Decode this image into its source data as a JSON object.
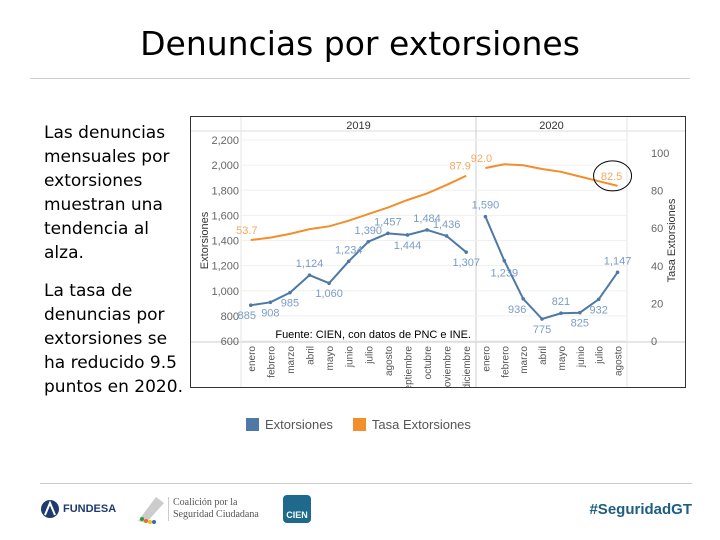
{
  "title": "Denuncias por extorsiones",
  "side_text": [
    "Las denuncias mensuales por extorsiones muestran una tendencia al alza.",
    "La tasa de denuncias por extorsiones se ha reducido 9.5 puntos en 2020."
  ],
  "source_note": "Fuente: CIEN, con datos de PNC e INE.",
  "footer": {
    "logo1": "FUNDESA",
    "logo2_line1": "Coalición por la",
    "logo2_line2": "Seguridad Ciudadana",
    "logo3": "CIEN",
    "hashtag": "#SeguridadGT"
  },
  "colors": {
    "extorsiones": "#4e79a7",
    "tasa": "#f28e2b",
    "label_ext": "#7b9cc4",
    "label_tasa": "#f5a860"
  },
  "chart_data": {
    "type": "line",
    "panels": [
      {
        "year": "2019",
        "months": [
          "enero",
          "febrero",
          "marzo",
          "abril",
          "mayo",
          "junio",
          "julio",
          "agosto",
          "septiembre",
          "octubre",
          "noviembre",
          "diciembre"
        ],
        "extorsiones": [
          885,
          908,
          985,
          1124,
          1060,
          1234,
          1390,
          1457,
          1444,
          1484,
          1436,
          1307
        ],
        "tasa": [
          53.7,
          55,
          57,
          59.5,
          61,
          64,
          67.5,
          71,
          75,
          78.5,
          83,
          87.9
        ]
      },
      {
        "year": "2020",
        "months": [
          "enero",
          "febrero",
          "marzo",
          "abril",
          "mayo",
          "junio",
          "julio",
          "agosto"
        ],
        "extorsiones": [
          1590,
          1239,
          936,
          775,
          821,
          825,
          932,
          1147
        ],
        "tasa": [
          92.0,
          94,
          93.5,
          91.5,
          90,
          87.5,
          85,
          82.5
        ]
      }
    ],
    "tasa_labels": {
      "2019": [
        "53.7",
        "87.9"
      ],
      "2020": [
        "92.0",
        "82.5"
      ]
    },
    "ylabel": "Extorsiones",
    "ylim": [
      600,
      2200
    ],
    "yticks": [
      "600",
      "800",
      "1,000",
      "1,200",
      "1,400",
      "1,600",
      "1,800",
      "2,000",
      "2,200"
    ],
    "y2label": "Tasa Extorsiones",
    "y2lim": [
      0,
      110
    ],
    "y2ticks": [
      "0",
      "20",
      "40",
      "60",
      "80",
      "100"
    ],
    "legend": [
      "Extorsiones",
      "Tasa Extorsiones"
    ],
    "annotation": "82.5 circled"
  }
}
